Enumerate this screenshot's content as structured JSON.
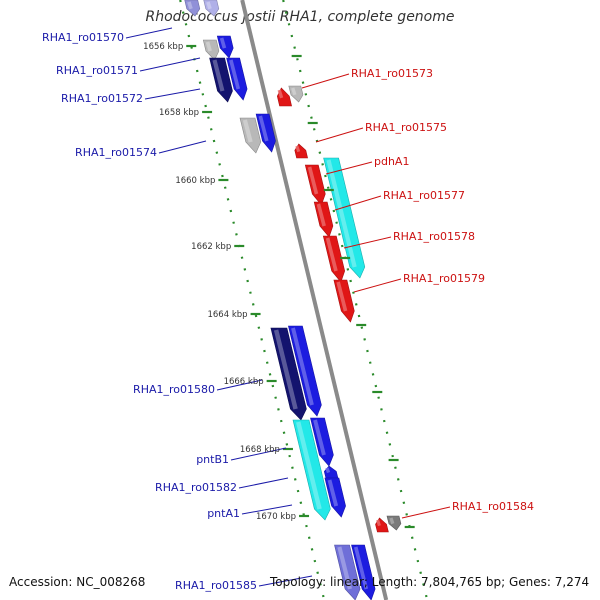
{
  "title": "Rhodococcus jostii RHA1, complete genome",
  "footer": {
    "accession": "Accession: NC_008268",
    "summary": "Topology: linear; Length: 7,804,765 bp; Genes: 7,274"
  },
  "ruler_labels": [
    "1656 kbp",
    "1658 kbp",
    "1660 kbp",
    "1662 kbp",
    "1664 kbp",
    "1666 kbp",
    "1668 kbp",
    "1670 kbp"
  ],
  "left_labels": [
    "RHA1_ro01570",
    "RHA1_ro01571",
    "RHA1_ro01572",
    "RHA1_ro01574",
    "RHA1_ro01580",
    "pntB1",
    "RHA1_ro01582",
    "pntA1",
    "RHA1_ro01585"
  ],
  "right_labels": [
    "RHA1_ro01573",
    "RHA1_ro01575",
    "pdhA1",
    "RHA1_ro01577",
    "RHA1_ro01578",
    "RHA1_ro01579",
    "RHA1_ro01584"
  ],
  "colors": {
    "left_label": "#1a1aa8",
    "right_label": "#cc1111",
    "ruler_dots": "#2a8a2a",
    "backbone": "#8a8a8a",
    "gene_blue": "#1c1ce0",
    "gene_navy": "#13136e",
    "gene_cyan": "#22e8e8",
    "gene_red": "#e01616",
    "gene_gray": "#b8b8b8",
    "gene_darkgray": "#7a7a7a"
  }
}
